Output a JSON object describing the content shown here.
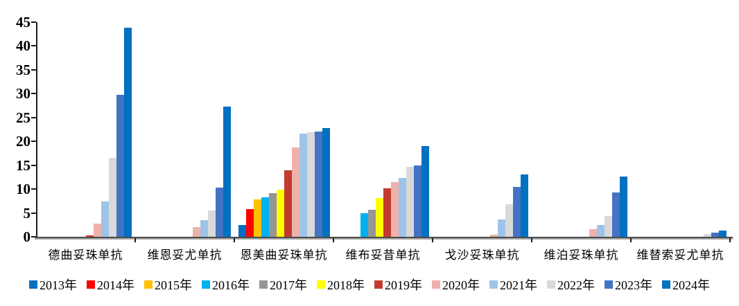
{
  "chart_data": {
    "type": "bar",
    "title": "",
    "xlabel": "",
    "ylabel": "",
    "ylim": [
      0,
      45
    ],
    "yticks": [
      0,
      5,
      10,
      15,
      20,
      25,
      30,
      35,
      40,
      45
    ],
    "grid": false,
    "legend_position": "bottom",
    "categories": [
      "德曲妥珠单抗",
      "维恩妥尤单抗",
      "恩美曲妥珠单抗",
      "维布妥昔单抗",
      "戈沙妥珠单抗",
      "维泊妥珠单抗",
      "维替索妥尤单抗"
    ],
    "series": [
      {
        "name": "2013年",
        "color": "#0070C0",
        "values": [
          0,
          0,
          2.5,
          0,
          0,
          0,
          0
        ]
      },
      {
        "name": "2014年",
        "color": "#FF0000",
        "values": [
          0,
          0,
          5.8,
          0,
          0,
          0,
          0
        ]
      },
      {
        "name": "2015年",
        "color": "#FFC000",
        "values": [
          0,
          0,
          7.9,
          0,
          0,
          0,
          0
        ]
      },
      {
        "name": "2016年",
        "color": "#00B0F0",
        "values": [
          0,
          0,
          8.3,
          5.0,
          0,
          0,
          0
        ]
      },
      {
        "name": "2017年",
        "color": "#969696",
        "values": [
          0,
          0,
          9.2,
          5.6,
          0,
          0,
          0
        ]
      },
      {
        "name": "2018年",
        "color": "#FFFF00",
        "values": [
          0,
          0,
          9.9,
          8.1,
          0,
          0,
          0
        ]
      },
      {
        "name": "2019年",
        "color": "#C23B2E",
        "values": [
          0.3,
          0,
          14.0,
          10.1,
          0,
          0,
          0
        ]
      },
      {
        "name": "2020年",
        "color": "#EEB2AB",
        "values": [
          2.8,
          2.1,
          18.7,
          11.4,
          0.5,
          1.6,
          0
        ]
      },
      {
        "name": "2021年",
        "color": "#9FC3E8",
        "values": [
          7.4,
          3.5,
          21.7,
          12.4,
          3.7,
          2.5,
          0
        ]
      },
      {
        "name": "2022年",
        "color": "#D9D9D9",
        "values": [
          16.6,
          5.5,
          21.9,
          14.7,
          6.8,
          4.4,
          0.6
        ]
      },
      {
        "name": "2023年",
        "color": "#4472C4",
        "values": [
          29.8,
          10.3,
          22.1,
          15.0,
          10.5,
          9.3,
          0.8
        ]
      },
      {
        "name": "2024年",
        "color": "#0070C0",
        "values": [
          43.8,
          27.3,
          22.8,
          19.0,
          13.1,
          12.7,
          1.3
        ]
      }
    ]
  }
}
